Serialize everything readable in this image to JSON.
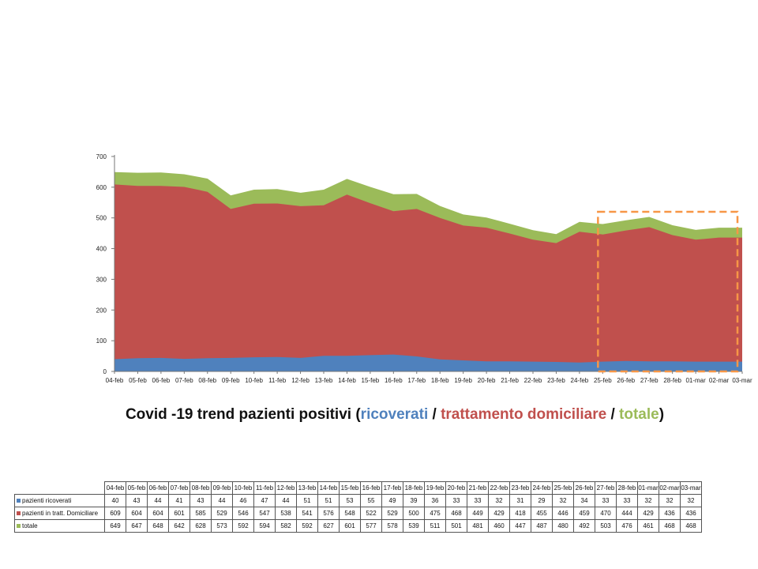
{
  "chart_data": {
    "type": "area",
    "title": "Covid -19 trend pazienti positivi",
    "title_parts": {
      "open": "(",
      "ricoverati": "ricoverati",
      "sep1": " / ",
      "trattamento": "trattamento domiciliare",
      "sep2": " / ",
      "totale": "totale",
      "close": ")"
    },
    "categories": [
      "04-feb",
      "05-feb",
      "06-feb",
      "07-feb",
      "08-feb",
      "09-feb",
      "10-feb",
      "11-feb",
      "12-feb",
      "13-feb",
      "14-feb",
      "15-feb",
      "16-feb",
      "17-feb",
      "18-feb",
      "19-feb",
      "20-feb",
      "21-feb",
      "22-feb",
      "23-feb",
      "24-feb",
      "25-feb",
      "26-feb",
      "27-feb",
      "28-feb",
      "01-mar",
      "02-mar",
      "03-mar"
    ],
    "series": [
      {
        "name": "pazienti ricoverati",
        "color": "#4f81bd",
        "values": [
          40,
          43,
          44,
          41,
          43,
          44,
          46,
          47,
          44,
          51,
          51,
          53,
          55,
          49,
          39,
          36,
          33,
          33,
          32,
          31,
          29,
          32,
          34,
          33,
          33,
          32,
          32,
          32
        ]
      },
      {
        "name": "pazienti in tratt. Domiciliare",
        "color": "#c0504d",
        "values": [
          609,
          604,
          604,
          601,
          585,
          529,
          546,
          547,
          538,
          541,
          576,
          548,
          522,
          529,
          500,
          475,
          468,
          449,
          429,
          418,
          455,
          446,
          459,
          470,
          444,
          429,
          436,
          436
        ]
      },
      {
        "name": "totale",
        "color": "#9bbb59",
        "values": [
          649,
          647,
          648,
          642,
          628,
          573,
          592,
          594,
          582,
          592,
          627,
          601,
          577,
          578,
          539,
          511,
          501,
          481,
          460,
          447,
          487,
          480,
          492,
          503,
          476,
          461,
          468,
          468
        ]
      }
    ],
    "ylim": [
      0,
      700
    ],
    "yticks": [
      0,
      100,
      200,
      300,
      400,
      500,
      600,
      700
    ],
    "grid": false,
    "highlight": {
      "from": "25-feb",
      "to": "03-mar",
      "color": "#f79646",
      "style": "dashed"
    }
  }
}
